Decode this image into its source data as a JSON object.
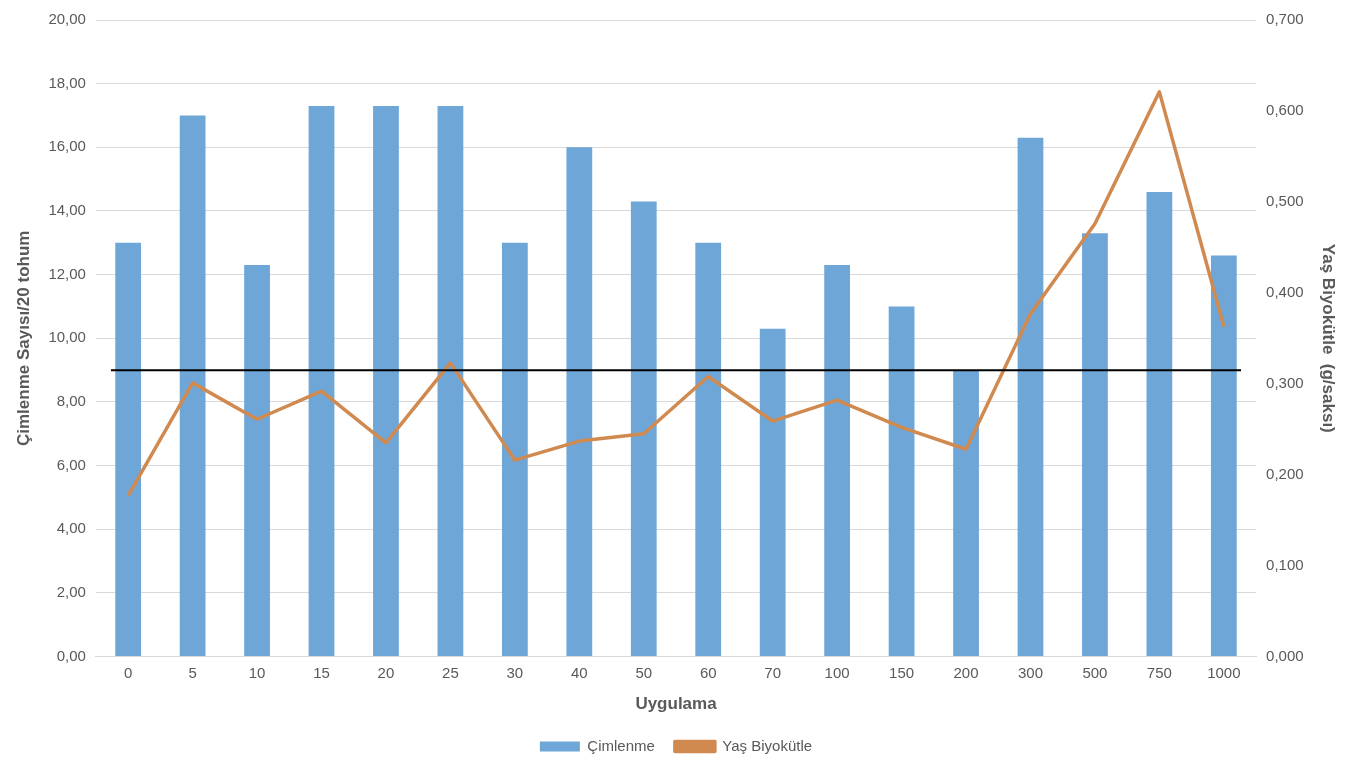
{
  "chart_data": {
    "type": "bar",
    "xlabel": "Uygulama",
    "ylabel": "Çimlenme Sayısı/20 tohum",
    "y2label": "Yaş Biyokütle  (g/saksı)",
    "categories": [
      "0",
      "5",
      "10",
      "15",
      "20",
      "25",
      "30",
      "40",
      "50",
      "60",
      "70",
      "100",
      "150",
      "200",
      "300",
      "500",
      "750",
      "1000"
    ],
    "series": [
      {
        "name": "Çimlenme",
        "color": "#6fa6d8",
        "values": [
          13.0,
          17.0,
          12.3,
          17.3,
          17.3,
          17.3,
          13.0,
          16.0,
          14.3,
          13.0,
          10.3,
          12.3,
          11.0,
          9.0,
          16.3,
          13.3,
          14.6,
          12.6
        ]
      },
      {
        "name": "Yaş Biyokütle",
        "type": "line",
        "axis": "y2",
        "color": "#d08a50",
        "values": [
          0.177,
          0.301,
          0.261,
          0.292,
          0.235,
          0.323,
          0.216,
          0.237,
          0.245,
          0.308,
          0.259,
          0.282,
          0.252,
          0.228,
          0.377,
          0.476,
          0.621,
          0.363
        ]
      }
    ],
    "ylim": [
      0,
      20
    ],
    "yticks": [
      {
        "value": 0,
        "label": "0,00"
      },
      {
        "value": 2,
        "label": "2,00"
      },
      {
        "value": 4,
        "label": "4,00"
      },
      {
        "value": 6,
        "label": "6,00"
      },
      {
        "value": 8,
        "label": "8,00"
      },
      {
        "value": 10,
        "label": "10,00"
      },
      {
        "value": 12,
        "label": "12,00"
      },
      {
        "value": 14,
        "label": "14,00"
      },
      {
        "value": 16,
        "label": "16,00"
      },
      {
        "value": 18,
        "label": "18,00"
      },
      {
        "value": 20,
        "label": "20,00"
      }
    ],
    "y2lim": [
      0,
      0.7
    ],
    "y2ticks": [
      {
        "value": 0,
        "label": "0,000"
      },
      {
        "value": 0.1,
        "label": "0,100"
      },
      {
        "value": 0.2,
        "label": "0,200"
      },
      {
        "value": 0.3,
        "label": "0,300"
      },
      {
        "value": 0.4,
        "label": "0,400"
      },
      {
        "value": 0.5,
        "label": "0,500"
      },
      {
        "value": 0.6,
        "label": "0,600"
      },
      {
        "value": 0.7,
        "label": "0,700"
      }
    ],
    "ref_lines": [
      {
        "axis": "y",
        "value": 9,
        "color": "#000000"
      }
    ],
    "grid": "y",
    "legend": "bottom",
    "marker": "none",
    "line_style": "solid"
  }
}
